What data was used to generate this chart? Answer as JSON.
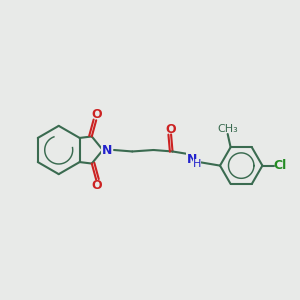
{
  "background_color": "#e8eae8",
  "bond_color": "#3a6b50",
  "bond_width": 1.5,
  "N_color": "#2222cc",
  "O_color": "#cc2222",
  "Cl_color": "#228B22",
  "text_fontsize": 9,
  "label_fontsize": 8,
  "figsize": [
    3.0,
    3.0
  ],
  "dpi": 100,
  "xlim": [
    0,
    10
  ],
  "ylim": [
    1,
    9
  ]
}
